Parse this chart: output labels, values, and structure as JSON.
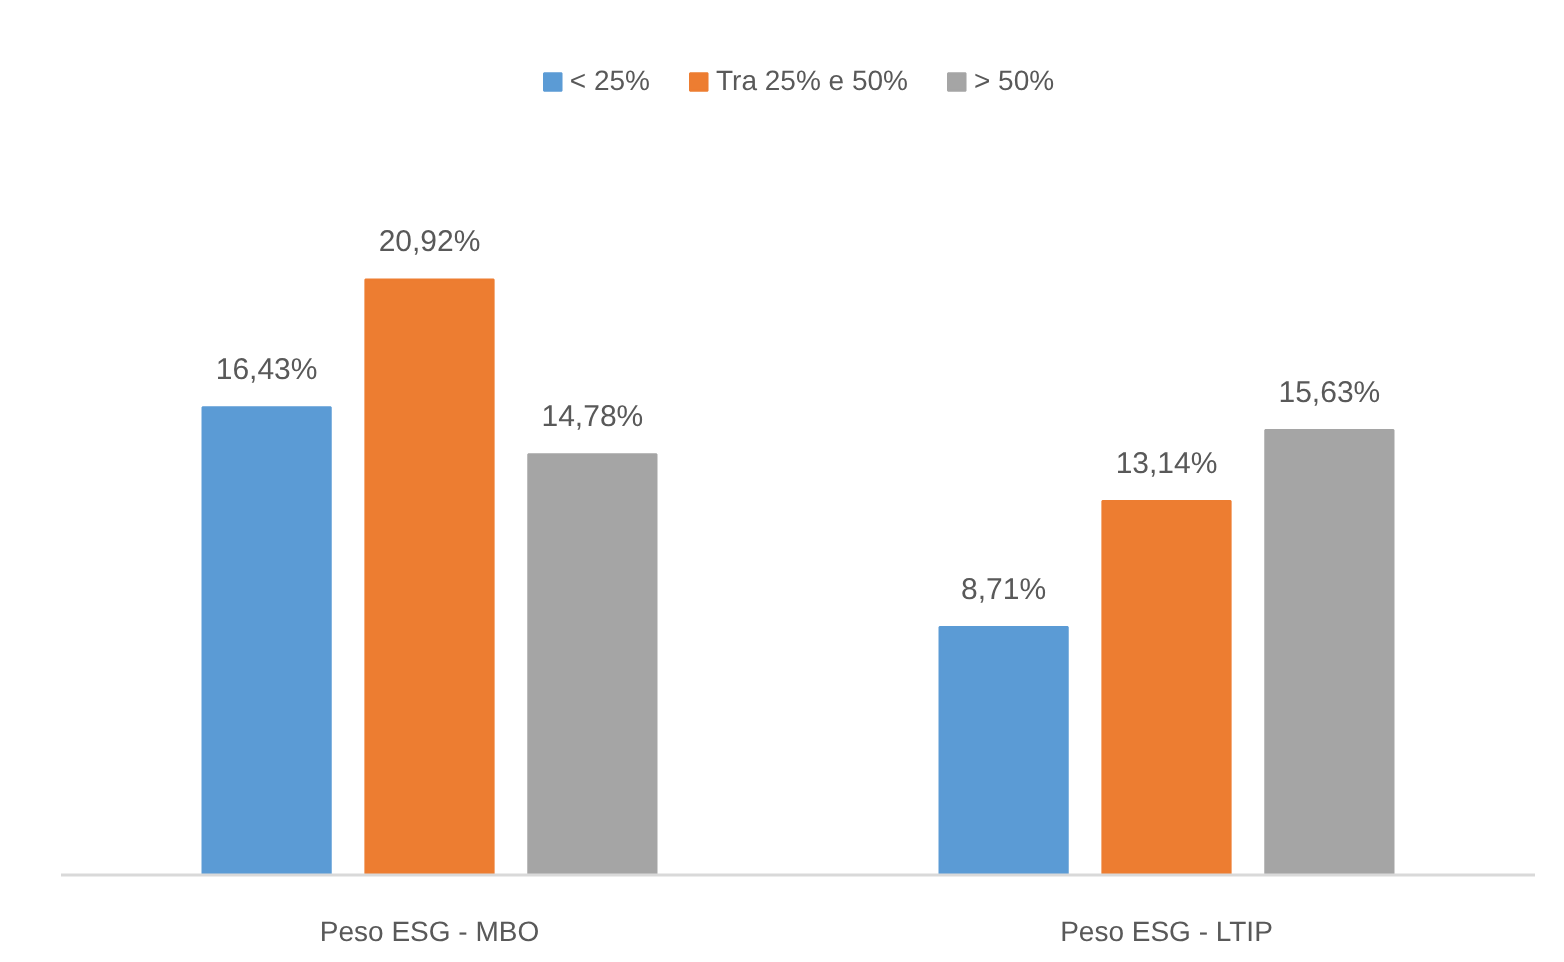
{
  "chart_data": {
    "type": "bar",
    "categories": [
      "Peso ESG - MBO",
      "Peso ESG - LTIP"
    ],
    "series": [
      {
        "name": "< 25%",
        "color": "#5b9bd5",
        "values": [
          16.43,
          8.71
        ],
        "value_labels": [
          "16,43%",
          "8,71%"
        ]
      },
      {
        "name": "Tra 25% e 50%",
        "color": "#ed7d31",
        "values": [
          20.92,
          13.14
        ],
        "value_labels": [
          "20,92%",
          "13,14%"
        ]
      },
      {
        "name": "> 50%",
        "color": "#a5a5a5",
        "values": [
          14.78,
          15.63
        ],
        "value_labels": [
          "14,78%",
          "15,63%"
        ]
      }
    ],
    "legend": "top"
  }
}
